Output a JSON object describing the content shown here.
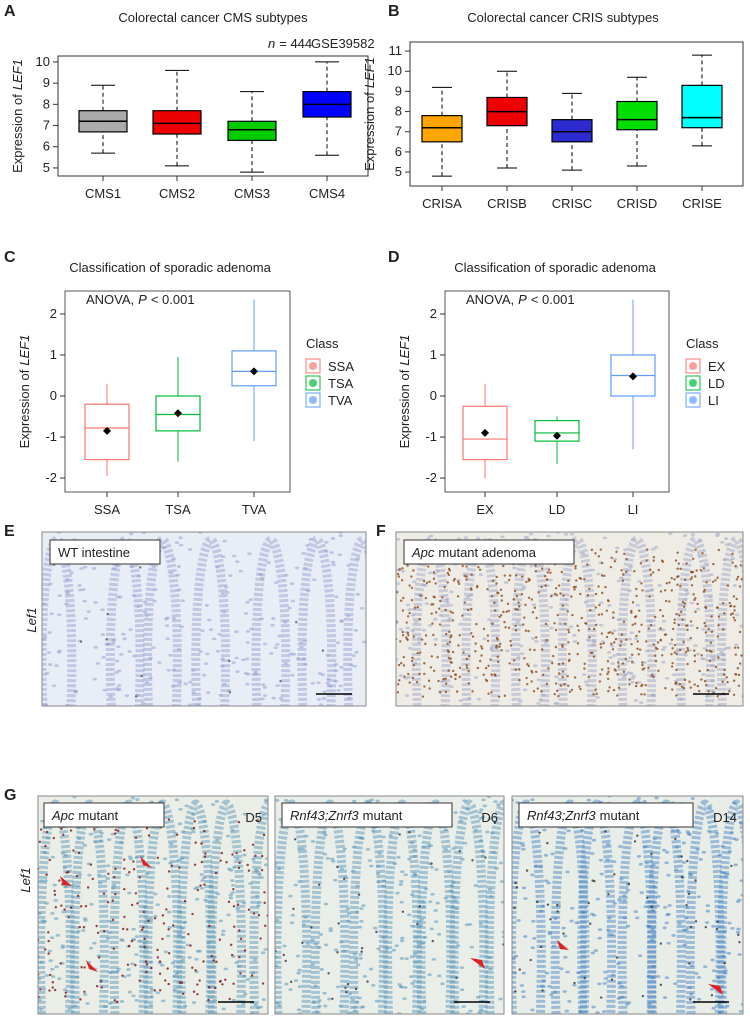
{
  "panels": [
    "A",
    "B",
    "C",
    "D",
    "E",
    "F",
    "G"
  ],
  "chart_data": [
    {
      "type": "box",
      "title": "Colorectal cancer CMS subtypes",
      "ylabel": [
        "Expression of",
        "LEF1"
      ],
      "annotations": [
        [
          "n",
          "= 444"
        ],
        [
          "GSE39582"
        ]
      ],
      "categories": [
        "CMS1",
        "CMS2",
        "CMS3",
        "CMS4"
      ],
      "colors": [
        "#aaaaaa",
        "#ee0000",
        "#00cc00",
        "#0000ff"
      ],
      "filled": true,
      "whisker_low": [
        5.7,
        5.1,
        4.8,
        5.6
      ],
      "q1": [
        6.7,
        6.6,
        6.3,
        7.4
      ],
      "median": [
        7.2,
        7.1,
        6.8,
        8.0
      ],
      "q3": [
        7.7,
        7.7,
        7.2,
        8.6
      ],
      "whisker_high": [
        8.9,
        9.6,
        8.6,
        10.0
      ],
      "ylim": [
        4.62,
        10.28
      ],
      "yticks": [
        5,
        6,
        7,
        8,
        9,
        10
      ]
    },
    {
      "type": "box",
      "title": "Colorectal cancer CRIS subtypes",
      "ylabel": [
        "Expression of",
        "LEF1"
      ],
      "categories": [
        "CRISA",
        "CRISB",
        "CRISC",
        "CRISD",
        "CRISE"
      ],
      "colors": [
        "#ffa500",
        "#ee0000",
        "#2b2bd0",
        "#00dd00",
        "#00ffff"
      ],
      "filled": true,
      "whisker_low": [
        4.8,
        5.2,
        5.1,
        5.3,
        6.3
      ],
      "q1": [
        6.5,
        7.3,
        6.5,
        7.1,
        7.2
      ],
      "median": [
        7.2,
        8.0,
        7.0,
        7.6,
        7.7
      ],
      "q3": [
        7.8,
        8.7,
        7.6,
        8.5,
        9.3
      ],
      "whisker_high": [
        9.2,
        10.0,
        8.9,
        9.7,
        10.8
      ],
      "ylim": [
        4.31,
        11.45
      ],
      "yticks": [
        5,
        6,
        7,
        8,
        9,
        10,
        11
      ]
    },
    {
      "type": "box",
      "title": "Classification of sporadic adenoma",
      "ylabel": [
        "Expression of",
        "LEF1"
      ],
      "annotations": [
        [
          "ANOVA,",
          "P",
          "< 0.001"
        ]
      ],
      "categories": [
        "SSA",
        "TSA",
        "TVA"
      ],
      "colors": [
        "#f8766d",
        "#00ba38",
        "#619cff"
      ],
      "filled": false,
      "whisker_low": [
        -1.95,
        -1.6,
        -1.1
      ],
      "q1": [
        -1.55,
        -0.85,
        0.25
      ],
      "median": [
        -0.78,
        -0.45,
        0.6
      ],
      "q3": [
        -0.2,
        0.0,
        1.1
      ],
      "whisker_high": [
        0.3,
        0.95,
        2.35
      ],
      "means": [
        -0.85,
        -0.42,
        0.6
      ],
      "ylim": [
        -2.34,
        2.56
      ],
      "yticks": [
        -2,
        -1,
        0,
        1,
        2
      ],
      "legend_title": "Class",
      "legend": true
    },
    {
      "type": "box",
      "title": "Classification of sporadic adenoma",
      "ylabel": [
        "Expression of",
        "LEF1"
      ],
      "annotations": [
        [
          "ANOVA,",
          "P",
          "< 0.001"
        ]
      ],
      "categories": [
        "EX",
        "LD",
        "LI"
      ],
      "colors": [
        "#f8766d",
        "#00ba38",
        "#619cff"
      ],
      "filled": false,
      "whisker_low": [
        -2.0,
        -1.65,
        -1.3
      ],
      "q1": [
        -1.55,
        -1.1,
        0.0
      ],
      "median": [
        -1.05,
        -0.9,
        0.5
      ],
      "q3": [
        -0.25,
        -0.6,
        1.0
      ],
      "whisker_high": [
        0.3,
        -0.5,
        2.35
      ],
      "means": [
        -0.9,
        -0.97,
        0.48
      ],
      "ylim": [
        -2.34,
        2.56
      ],
      "yticks": [
        -2,
        -1,
        0,
        1,
        2
      ],
      "legend_title": "Class",
      "legend": true
    }
  ],
  "images": {
    "side_labels": [
      "Lef1",
      "Lef1"
    ],
    "E": {
      "label": [
        "WT intestine"
      ]
    },
    "F": {
      "label": [
        "Apc",
        "mutant adenoma"
      ]
    },
    "G": [
      {
        "label": [
          "Apc",
          "mutant"
        ],
        "day": "D5"
      },
      {
        "label": [
          "Rnf43;Znrf3",
          "mutant"
        ],
        "day": "D6"
      },
      {
        "label": [
          "Rnf43;Znrf3",
          "mutant"
        ],
        "day": "D14"
      }
    ]
  }
}
